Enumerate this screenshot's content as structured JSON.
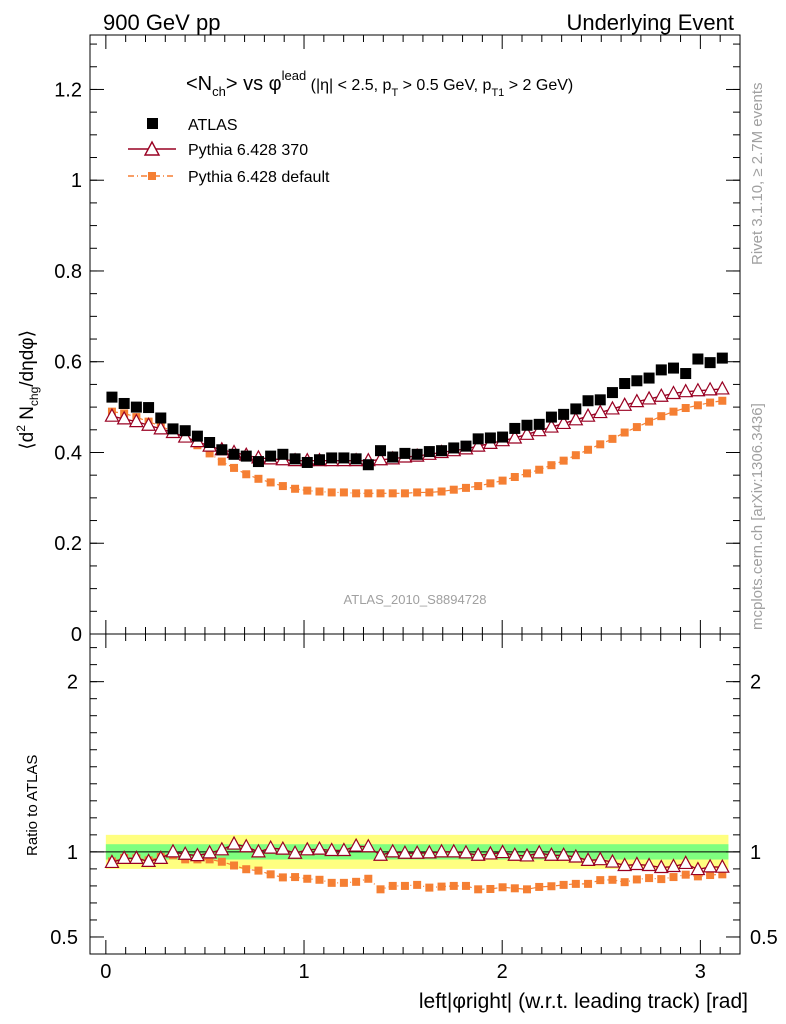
{
  "header": {
    "left": "900 GeV pp",
    "right": "Underlying Event"
  },
  "side": {
    "rivet": "Rivet 3.1.10, ≥ 2.7M events",
    "mcplots": "mcplots.cern.ch [arXiv:1306.3436]"
  },
  "colors": {
    "atlas": "#000000",
    "pythia370": "#990022",
    "pythiaDefault": "#f57f33",
    "bandInner": "#7fff7f",
    "bandOuter": "#ffff80"
  },
  "chart_data": [
    {
      "type": "scatter",
      "panel": "main",
      "title": "<N_ch> vs φ^lead (|η| < 2.5, p_T > 0.5 GeV, p_T1 > 2 GeV)",
      "title_parts": {
        "a": "<N",
        "a_sub": "ch",
        "b": "> vs φ",
        "b_sup": "lead",
        "c": " (|η| < 2.5, p",
        "c_sub": "T",
        "d": " > 0.5 GeV, p",
        "d_sub": "T1",
        "e": " > 2 GeV)"
      },
      "ylabel": "⟨d² N_chg/dηdφ⟩",
      "ylabel_parts": {
        "a": "⟨d",
        "a_sup": "2",
        "b": " N",
        "b_sub": "chg",
        "c": "/dηdφ⟩"
      },
      "ylim": [
        0,
        1.32
      ],
      "yticks": [
        "0",
        "0.2",
        "0.4",
        "0.6",
        "0.8",
        "1",
        "1.2"
      ],
      "xlim": [
        -0.08,
        3.2
      ],
      "analysis_label": "ATLAS_2010_S8894728",
      "legend": [
        "ATLAS",
        "Pythia 6.428 370",
        "Pythia 6.428 default"
      ],
      "series": [
        {
          "name": "ATLAS",
          "values": [
            0.522,
            0.508,
            0.5,
            0.499,
            0.476,
            0.452,
            0.448,
            0.436,
            0.422,
            0.406,
            0.396,
            0.392,
            0.38,
            0.392,
            0.396,
            0.386,
            0.378,
            0.384,
            0.388,
            0.388,
            0.386,
            0.373,
            0.404,
            0.39,
            0.398,
            0.396,
            0.402,
            0.404,
            0.41,
            0.414,
            0.43,
            0.432,
            0.434,
            0.453,
            0.46,
            0.462,
            0.478,
            0.484,
            0.496,
            0.514,
            0.516,
            0.532,
            0.552,
            0.558,
            0.564,
            0.582,
            0.586,
            0.574,
            0.606,
            0.598,
            0.608
          ]
        },
        {
          "name": "Pythia 6.428 370",
          "values": [
            0.48,
            0.474,
            0.468,
            0.46,
            0.452,
            0.444,
            0.434,
            0.424,
            0.414,
            0.406,
            0.4,
            0.394,
            0.388,
            0.386,
            0.384,
            0.382,
            0.382,
            0.382,
            0.382,
            0.382,
            0.382,
            0.382,
            0.384,
            0.386,
            0.39,
            0.392,
            0.396,
            0.4,
            0.404,
            0.408,
            0.414,
            0.42,
            0.426,
            0.432,
            0.44,
            0.448,
            0.456,
            0.464,
            0.472,
            0.48,
            0.488,
            0.496,
            0.504,
            0.512,
            0.518,
            0.524,
            0.53,
            0.534,
            0.536,
            0.538,
            0.54
          ]
        },
        {
          "name": "Pythia 6.428 default",
          "values": [
            0.49,
            0.486,
            0.478,
            0.468,
            0.458,
            0.446,
            0.432,
            0.416,
            0.398,
            0.38,
            0.366,
            0.352,
            0.342,
            0.334,
            0.326,
            0.32,
            0.316,
            0.314,
            0.312,
            0.312,
            0.31,
            0.31,
            0.31,
            0.31,
            0.31,
            0.312,
            0.312,
            0.314,
            0.318,
            0.322,
            0.326,
            0.332,
            0.338,
            0.346,
            0.354,
            0.362,
            0.372,
            0.382,
            0.394,
            0.406,
            0.418,
            0.43,
            0.444,
            0.456,
            0.468,
            0.48,
            0.49,
            0.498,
            0.504,
            0.51,
            0.514
          ]
        }
      ]
    },
    {
      "type": "scatter",
      "panel": "ratio",
      "ylabel": "Ratio to ATLAS",
      "xlabel": "left|φright| (w.r.t. leading track) [rad]",
      "ylim": [
        0.4,
        2.28
      ],
      "yticks": [
        "0.5",
        "1",
        "2"
      ],
      "xticks": [
        "0",
        "1",
        "2",
        "3"
      ],
      "xlim": [
        -0.08,
        3.2
      ],
      "band_inner": [
        0.955,
        1.045
      ],
      "band_outer": [
        0.9,
        1.1
      ],
      "series": [
        {
          "name": "Pythia 6.428 370",
          "values": [
            0.938,
            0.962,
            0.962,
            0.944,
            0.962,
            1.0,
            0.986,
            0.978,
            0.994,
            1.012,
            1.046,
            1.03,
            1.0,
            1.022,
            1.016,
            0.992,
            1.012,
            1.016,
            1.008,
            1.008,
            1.034,
            1.03,
            0.98,
            1.0,
            0.992,
            0.992,
            0.994,
            1.0,
            1.0,
            0.994,
            0.98,
            0.988,
            0.996,
            0.98,
            0.976,
            0.994,
            0.98,
            0.98,
            0.97,
            0.95,
            0.954,
            0.94,
            0.92,
            0.926,
            0.92,
            0.908,
            0.914,
            0.932,
            0.896,
            0.912,
            0.91
          ]
        },
        {
          "name": "Pythia 6.428 default",
          "values": [
            0.944,
            0.964,
            0.962,
            0.95,
            0.97,
            0.98,
            0.956,
            0.956,
            0.956,
            0.942,
            0.92,
            0.898,
            0.89,
            0.868,
            0.85,
            0.852,
            0.842,
            0.836,
            0.818,
            0.818,
            0.824,
            0.842,
            0.78,
            0.8,
            0.8,
            0.806,
            0.79,
            0.796,
            0.8,
            0.8,
            0.78,
            0.782,
            0.792,
            0.786,
            0.78,
            0.794,
            0.798,
            0.806,
            0.812,
            0.812,
            0.834,
            0.836,
            0.822,
            0.838,
            0.846,
            0.84,
            0.852,
            0.866,
            0.856,
            0.864,
            0.868
          ]
        }
      ]
    }
  ]
}
